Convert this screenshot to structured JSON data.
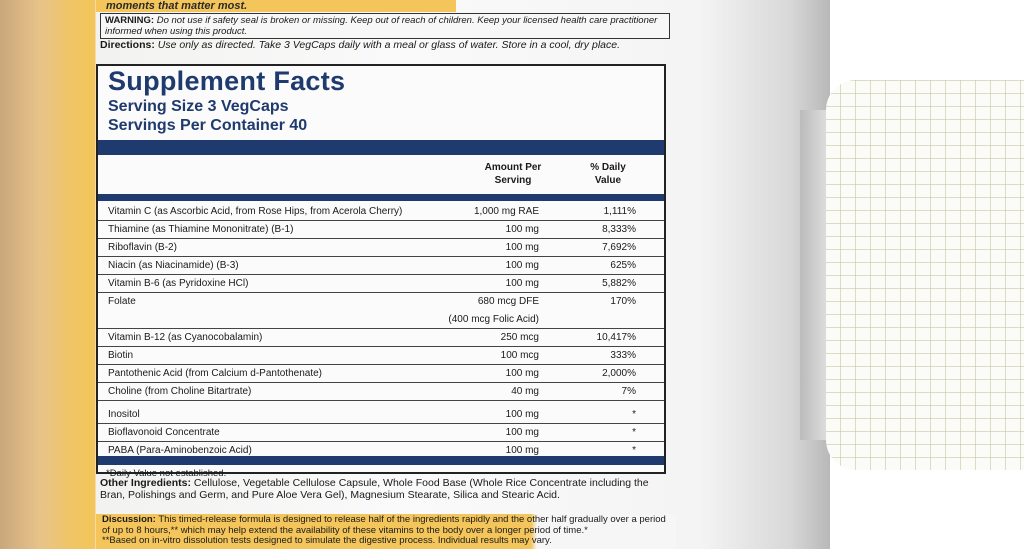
{
  "banner": "moments that matter most.",
  "warning": {
    "label": "WARNING:",
    "text": " Do not use if safety seal is broken or missing. Keep out of reach of children. Keep your licensed health care practitioner informed when using this product."
  },
  "directions": {
    "label": "Directions:",
    "text": " Use only as directed. Take 3 VegCaps daily with a meal or glass of water. Store in a cool, dry place."
  },
  "facts": {
    "title": "Supplement Facts",
    "serving_size": "Serving Size 3 VegCaps",
    "servings": "Servings Per Container 40",
    "col_amount": "Amount Per Serving",
    "col_dv": "% Daily Value",
    "rows": [
      {
        "name": "Vitamin C (as Ascorbic Acid, from Rose Hips, from Acerola Cherry)",
        "amount": "1,000 mg RAE",
        "dv": "1,111%"
      },
      {
        "name": "Thiamine (as Thiamine Mononitrate) (B-1)",
        "amount": "100 mg",
        "dv": "8,333%"
      },
      {
        "name": "Riboflavin (B-2)",
        "amount": "100 mg",
        "dv": "7,692%"
      },
      {
        "name": "Niacin (as Niacinamide) (B-3)",
        "amount": "100 mg",
        "dv": "625%"
      },
      {
        "name": "Vitamin B-6 (as Pyridoxine HCl)",
        "amount": "100 mg",
        "dv": "5,882%"
      },
      {
        "name": "Folate",
        "amount": "680 mcg DFE",
        "amount2": "(400 mcg Folic Acid)",
        "dv": "170%"
      },
      {
        "name": "Vitamin B-12 (as Cyanocobalamin)",
        "amount": "250 mcg",
        "dv": "10,417%"
      },
      {
        "name": "Biotin",
        "amount": "100 mcg",
        "dv": "333%"
      },
      {
        "name": "Pantothenic Acid (from Calcium d-Pantothenate)",
        "amount": "100 mg",
        "dv": "2,000%"
      },
      {
        "name": "Choline (from Choline Bitartrate)",
        "amount": "40 mg",
        "dv": "7%"
      },
      {
        "name": "Inositol",
        "amount": "100 mg",
        "dv": "*"
      },
      {
        "name": "Bioflavonoid Concentrate",
        "amount": "100 mg",
        "dv": "*"
      },
      {
        "name": "PABA (Para-Aminobenzoic Acid)",
        "amount": "100 mg",
        "dv": "*"
      }
    ],
    "footnote": "*Daily Value not established."
  },
  "other": {
    "label": "Other Ingredients:",
    "text": " Cellulose, Vegetable Cellulose Capsule, Whole Food Base (Whole Rice Concentrate including the Bran, Polishings and Germ, and Pure Aloe Vera Gel), Magnesium Stearate, Silica and Stearic Acid."
  },
  "discussion": {
    "label": "Discussion:",
    "text": " This timed-release formula is designed to release half of the ingredients rapidly and the other half gradually over a period of up to 8 hours,** which may help extend the availability of these vitamins to the body over a longer period of time.*",
    "note": "**Based on in-vitro dissolution tests designed to simulate the digestive process. Individual results may vary."
  }
}
